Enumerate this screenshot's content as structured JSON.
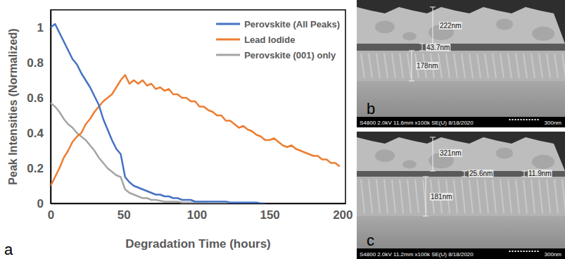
{
  "chart_data": {
    "type": "line",
    "x_label": "Degradation Time (hours)",
    "y_label": "Peak Intensities (Normalized)",
    "x": [
      0,
      3,
      6,
      9,
      12,
      15,
      18,
      21,
      24,
      27,
      30,
      33,
      36,
      39,
      42,
      45,
      48,
      51,
      54,
      57,
      60,
      63,
      66,
      69,
      72,
      75,
      78,
      81,
      84,
      87,
      90,
      93,
      96,
      99,
      102,
      105,
      108,
      111,
      114,
      117,
      120,
      123,
      126,
      129,
      132,
      135,
      138,
      141,
      144,
      147,
      150,
      153,
      156,
      159,
      162,
      165,
      168,
      171,
      174,
      177,
      180,
      183,
      186,
      189,
      192,
      195,
      198
    ],
    "series": [
      {
        "name": "Perovskite (All Peaks)",
        "color": "#4472c4",
        "values": [
          1.0,
          1.02,
          0.97,
          0.92,
          0.87,
          0.82,
          0.79,
          0.74,
          0.7,
          0.66,
          0.61,
          0.56,
          0.48,
          0.42,
          0.36,
          0.31,
          0.28,
          0.15,
          0.12,
          0.1,
          0.09,
          0.08,
          0.07,
          0.06,
          0.05,
          0.05,
          0.04,
          0.04,
          0.03,
          0.03,
          0.02,
          0.02,
          0.02,
          0.01,
          0.01,
          0.01,
          0.01,
          0.01,
          0.01,
          0.01,
          0.01,
          0.005,
          0.005,
          0.005,
          0.005,
          0.005,
          0.005,
          0.005,
          0,
          0,
          null,
          null,
          null,
          null,
          null,
          null,
          null,
          null,
          null,
          null,
          null,
          null,
          null,
          null,
          null,
          null,
          null
        ]
      },
      {
        "name": "Lead Iodide",
        "color": "#ed7d31",
        "values": [
          0.1,
          0.15,
          0.2,
          0.26,
          0.3,
          0.35,
          0.38,
          0.4,
          0.45,
          0.48,
          0.52,
          0.55,
          0.58,
          0.6,
          0.62,
          0.66,
          0.7,
          0.73,
          0.68,
          0.7,
          0.68,
          0.7,
          0.67,
          0.68,
          0.65,
          0.66,
          0.64,
          0.65,
          0.62,
          0.62,
          0.6,
          0.6,
          0.58,
          0.58,
          0.55,
          0.55,
          0.53,
          0.52,
          0.5,
          0.5,
          0.47,
          0.47,
          0.45,
          0.43,
          0.44,
          0.42,
          0.41,
          0.39,
          0.38,
          0.36,
          0.36,
          0.37,
          0.35,
          0.33,
          0.32,
          0.33,
          0.31,
          0.3,
          0.29,
          0.28,
          0.27,
          0.27,
          0.25,
          0.25,
          0.23,
          0.23,
          0.21
        ]
      },
      {
        "name": "Perovskite (001) only",
        "color": "#a5a5a5",
        "values": [
          0.57,
          0.55,
          0.52,
          0.48,
          0.45,
          0.43,
          0.4,
          0.38,
          0.36,
          0.33,
          0.3,
          0.26,
          0.23,
          0.2,
          0.18,
          0.16,
          0.15,
          0.08,
          0.06,
          0.05,
          0.04,
          0.03,
          0.03,
          0.02,
          0.02,
          0.015,
          0.01,
          0.01,
          0.01,
          0.01,
          0.005,
          0.005,
          0.005,
          0.005,
          0.005,
          0.005,
          0,
          0,
          0,
          0,
          0,
          0,
          0,
          0,
          0,
          0,
          0,
          0,
          0,
          0,
          null,
          null,
          null,
          null,
          null,
          null,
          null,
          null,
          null,
          null,
          null,
          null,
          null,
          null,
          null,
          null,
          null
        ]
      }
    ],
    "xlim": [
      0,
      202
    ],
    "xticks": [
      0,
      50,
      100,
      150,
      200
    ],
    "ylim": [
      0,
      1.1
    ],
    "yticks": [
      0,
      0.2,
      0.4,
      0.6,
      0.8,
      1
    ],
    "grid": false,
    "legend": "top-right"
  },
  "figure": {
    "chart_label": "a",
    "micrographs": [
      {
        "label": "b",
        "measurements": [
          "222nm",
          "43.7nm",
          "178nm"
        ],
        "footer": "S4800 2.0kV 11.6mm x100k SE(U) 8/18/2020",
        "scale_bar": "300nm"
      },
      {
        "label": "c",
        "measurements": [
          "321nm",
          "25.6nm",
          "11.9nm",
          "181nm"
        ],
        "footer": "S4800 2.0kV 11.2mm x100k SE(U) 8/18/2020",
        "scale_bar": "300nm"
      }
    ]
  }
}
